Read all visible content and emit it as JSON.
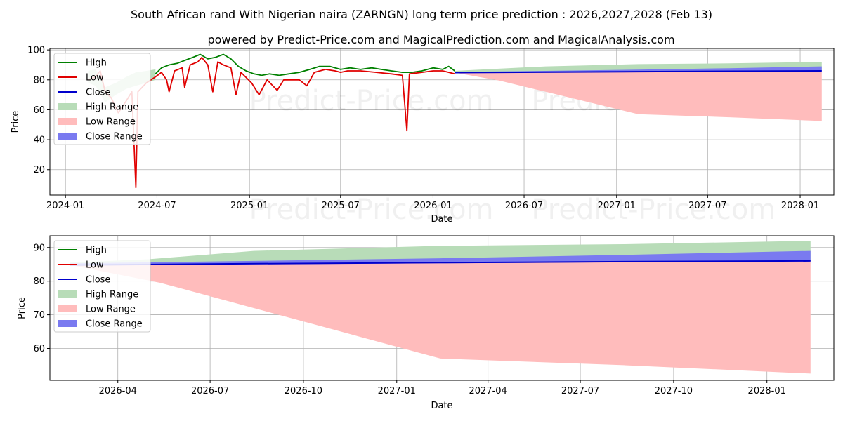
{
  "title": "South African rand With Nigerian naira (ZARNGN) long term price prediction : 2026,2027,2028 (Feb 13)",
  "subtitle": "powered by Predict-Price.com and MagicalPrediction.com and MagicalAnalysis.com",
  "watermark": "Predict-Price.com",
  "colors": {
    "high": "#008000",
    "low": "#e00000",
    "close": "#0000cc",
    "high_range": "#b8dcb8",
    "low_range": "#ffbcbc",
    "close_range": "#7a7af0"
  },
  "chart_data": [
    {
      "id": "overview",
      "type": "line",
      "xlabel": "Date",
      "ylabel": "Price",
      "xlim": [
        "2023-12-01",
        "2028-03-08"
      ],
      "ylim": [
        3,
        101
      ],
      "xticks": [
        {
          "date": "2024-01-01",
          "label": "2024-01"
        },
        {
          "date": "2024-07-01",
          "label": "2024-07"
        },
        {
          "date": "2025-01-01",
          "label": "2025-01"
        },
        {
          "date": "2025-07-01",
          "label": "2025-07"
        },
        {
          "date": "2026-01-01",
          "label": "2026-01"
        },
        {
          "date": "2026-07-01",
          "label": "2026-07"
        },
        {
          "date": "2027-01-01",
          "label": "2027-01"
        },
        {
          "date": "2027-07-01",
          "label": "2027-07"
        },
        {
          "date": "2028-01-01",
          "label": "2028-01"
        }
      ],
      "yticks": [
        20,
        40,
        60,
        80,
        100
      ],
      "grid": true,
      "legend_position": "top-left",
      "history_bands": {
        "high_range": [
          {
            "x": "2024-02-15",
            "lo": 78,
            "hi": 86
          },
          {
            "x": "2024-03-01",
            "lo": 76,
            "hi": 87
          },
          {
            "x": "2024-03-20",
            "lo": 65,
            "hi": 75
          },
          {
            "x": "2024-04-10",
            "lo": 70,
            "hi": 78
          },
          {
            "x": "2024-05-01",
            "lo": 74,
            "hi": 82
          },
          {
            "x": "2024-05-20",
            "lo": 76,
            "hi": 85
          },
          {
            "x": "2024-06-10",
            "lo": 78,
            "hi": 86
          },
          {
            "x": "2024-06-28",
            "lo": 80,
            "hi": 87
          }
        ]
      },
      "series": [
        {
          "name": "High",
          "points": [
            {
              "x": "2024-06-28",
              "y": 84
            },
            {
              "x": "2024-07-10",
              "y": 88
            },
            {
              "x": "2024-07-25",
              "y": 90
            },
            {
              "x": "2024-08-10",
              "y": 91
            },
            {
              "x": "2024-08-25",
              "y": 93
            },
            {
              "x": "2024-09-10",
              "y": 95
            },
            {
              "x": "2024-09-25",
              "y": 97
            },
            {
              "x": "2024-10-10",
              "y": 94
            },
            {
              "x": "2024-10-25",
              "y": 95
            },
            {
              "x": "2024-11-10",
              "y": 97
            },
            {
              "x": "2024-11-25",
              "y": 94
            },
            {
              "x": "2024-12-10",
              "y": 89
            },
            {
              "x": "2024-12-25",
              "y": 86
            },
            {
              "x": "2025-01-10",
              "y": 84
            },
            {
              "x": "2025-01-25",
              "y": 83
            },
            {
              "x": "2025-02-10",
              "y": 84
            },
            {
              "x": "2025-03-01",
              "y": 83
            },
            {
              "x": "2025-03-20",
              "y": 84
            },
            {
              "x": "2025-04-10",
              "y": 85
            },
            {
              "x": "2025-05-01",
              "y": 87
            },
            {
              "x": "2025-05-20",
              "y": 89
            },
            {
              "x": "2025-06-10",
              "y": 89
            },
            {
              "x": "2025-07-01",
              "y": 87
            },
            {
              "x": "2025-07-20",
              "y": 88
            },
            {
              "x": "2025-08-10",
              "y": 87
            },
            {
              "x": "2025-09-01",
              "y": 88
            },
            {
              "x": "2025-09-20",
              "y": 87
            },
            {
              "x": "2025-10-10",
              "y": 86
            },
            {
              "x": "2025-11-01",
              "y": 85
            },
            {
              "x": "2025-11-20",
              "y": 85
            },
            {
              "x": "2025-12-10",
              "y": 86
            },
            {
              "x": "2026-01-01",
              "y": 88
            },
            {
              "x": "2026-01-20",
              "y": 87
            },
            {
              "x": "2026-02-01",
              "y": 89
            },
            {
              "x": "2026-02-13",
              "y": 86
            }
          ]
        },
        {
          "name": "Low",
          "points": [
            {
              "x": "2024-02-15",
              "y": 80
            },
            {
              "x": "2024-03-01",
              "y": 82
            },
            {
              "x": "2024-03-10",
              "y": 86
            },
            {
              "x": "2024-03-20",
              "y": 72
            },
            {
              "x": "2024-04-01",
              "y": 68
            },
            {
              "x": "2024-04-15",
              "y": 58
            },
            {
              "x": "2024-05-01",
              "y": 66
            },
            {
              "x": "2024-05-12",
              "y": 72
            },
            {
              "x": "2024-05-20",
              "y": 8
            },
            {
              "x": "2024-05-24",
              "y": 72
            },
            {
              "x": "2024-06-10",
              "y": 78
            },
            {
              "x": "2024-06-28",
              "y": 82
            },
            {
              "x": "2024-07-10",
              "y": 85
            },
            {
              "x": "2024-07-20",
              "y": 80
            },
            {
              "x": "2024-07-25",
              "y": 72
            },
            {
              "x": "2024-08-05",
              "y": 86
            },
            {
              "x": "2024-08-20",
              "y": 88
            },
            {
              "x": "2024-08-25",
              "y": 75
            },
            {
              "x": "2024-09-05",
              "y": 90
            },
            {
              "x": "2024-09-20",
              "y": 92
            },
            {
              "x": "2024-09-28",
              "y": 95
            },
            {
              "x": "2024-10-10",
              "y": 90
            },
            {
              "x": "2024-10-20",
              "y": 72
            },
            {
              "x": "2024-10-30",
              "y": 92
            },
            {
              "x": "2024-11-10",
              "y": 90
            },
            {
              "x": "2024-11-25",
              "y": 88
            },
            {
              "x": "2024-12-05",
              "y": 70
            },
            {
              "x": "2024-12-15",
              "y": 85
            },
            {
              "x": "2025-01-05",
              "y": 78
            },
            {
              "x": "2025-01-20",
              "y": 70
            },
            {
              "x": "2025-02-05",
              "y": 80
            },
            {
              "x": "2025-02-25",
              "y": 73
            },
            {
              "x": "2025-03-10",
              "y": 80
            },
            {
              "x": "2025-04-10",
              "y": 80
            },
            {
              "x": "2025-04-25",
              "y": 76
            },
            {
              "x": "2025-05-10",
              "y": 85
            },
            {
              "x": "2025-06-01",
              "y": 87
            },
            {
              "x": "2025-06-20",
              "y": 86
            },
            {
              "x": "2025-07-01",
              "y": 85
            },
            {
              "x": "2025-07-15",
              "y": 86
            },
            {
              "x": "2025-08-10",
              "y": 86
            },
            {
              "x": "2025-09-10",
              "y": 85
            },
            {
              "x": "2025-10-10",
              "y": 84
            },
            {
              "x": "2025-11-01",
              "y": 83
            },
            {
              "x": "2025-11-10",
              "y": 46
            },
            {
              "x": "2025-11-15",
              "y": 84
            },
            {
              "x": "2025-12-10",
              "y": 85
            },
            {
              "x": "2026-01-01",
              "y": 86
            },
            {
              "x": "2026-01-20",
              "y": 86
            },
            {
              "x": "2026-02-13",
              "y": 84
            }
          ]
        },
        {
          "name": "Close",
          "points": [
            {
              "x": "2026-02-13",
              "y": 84.8
            },
            {
              "x": "2027-02-13",
              "y": 85.5
            },
            {
              "x": "2028-02-13",
              "y": 86
            }
          ]
        }
      ],
      "forecast_bands": {
        "high_range": [
          {
            "x": "2026-02-13",
            "lo": 85,
            "hi": 86
          },
          {
            "x": "2026-08-13",
            "lo": 85.2,
            "hi": 89
          },
          {
            "x": "2027-02-13",
            "lo": 85.5,
            "hi": 90.5
          },
          {
            "x": "2027-08-13",
            "lo": 85.7,
            "hi": 91
          },
          {
            "x": "2028-02-13",
            "lo": 86,
            "hi": 92
          }
        ],
        "low_range": [
          {
            "x": "2026-02-13",
            "lo": 84.8,
            "hi": 85
          },
          {
            "x": "2026-05-13",
            "lo": 79.5,
            "hi": 85.1
          },
          {
            "x": "2026-08-13",
            "lo": 72,
            "hi": 85.2
          },
          {
            "x": "2026-11-13",
            "lo": 64.5,
            "hi": 85.4
          },
          {
            "x": "2027-02-13",
            "lo": 57,
            "hi": 85.5
          },
          {
            "x": "2027-08-13",
            "lo": 55,
            "hi": 85.7
          },
          {
            "x": "2028-02-13",
            "lo": 52.5,
            "hi": 86
          }
        ],
        "close_range": [
          {
            "x": "2026-02-13",
            "lo": 84.6,
            "hi": 85.3
          },
          {
            "x": "2026-08-13",
            "lo": 85,
            "hi": 86
          },
          {
            "x": "2027-02-13",
            "lo": 85.3,
            "hi": 86.8
          },
          {
            "x": "2027-08-13",
            "lo": 85.6,
            "hi": 87.8
          },
          {
            "x": "2028-02-13",
            "lo": 86,
            "hi": 89
          }
        ]
      },
      "legend": [
        "High",
        "Low",
        "Close",
        "High Range",
        "Low Range",
        "Close Range"
      ]
    },
    {
      "id": "forecast",
      "type": "line",
      "xlabel": "Date",
      "ylabel": "Price",
      "xlim": [
        "2026-01-24",
        "2028-03-07"
      ],
      "ylim": [
        50.5,
        93.5
      ],
      "xticks": [
        {
          "date": "2026-04-01",
          "label": "2026-04"
        },
        {
          "date": "2026-07-01",
          "label": "2026-07"
        },
        {
          "date": "2026-10-01",
          "label": "2026-10"
        },
        {
          "date": "2027-01-01",
          "label": "2027-01"
        },
        {
          "date": "2027-04-01",
          "label": "2027-04"
        },
        {
          "date": "2027-07-01",
          "label": "2027-07"
        },
        {
          "date": "2027-10-01",
          "label": "2027-10"
        },
        {
          "date": "2028-01-01",
          "label": "2028-01"
        }
      ],
      "yticks": [
        60,
        70,
        80,
        90
      ],
      "grid": true,
      "legend_position": "top-left",
      "series": [
        {
          "name": "Close",
          "points": [
            {
              "x": "2026-02-13",
              "y": 84.8
            },
            {
              "x": "2026-08-13",
              "y": 85.2
            },
            {
              "x": "2027-02-13",
              "y": 85.5
            },
            {
              "x": "2027-08-13",
              "y": 85.8
            },
            {
              "x": "2028-02-13",
              "y": 86
            }
          ]
        }
      ],
      "forecast_bands": {
        "high_range": [
          {
            "x": "2026-02-13",
            "lo": 85,
            "hi": 85.5
          },
          {
            "x": "2026-05-01",
            "lo": 85.1,
            "hi": 86.5
          },
          {
            "x": "2026-08-13",
            "lo": 85.2,
            "hi": 89
          },
          {
            "x": "2027-02-13",
            "lo": 85.5,
            "hi": 90.5
          },
          {
            "x": "2027-08-13",
            "lo": 85.8,
            "hi": 91
          },
          {
            "x": "2028-02-13",
            "lo": 86,
            "hi": 92
          }
        ],
        "low_range": [
          {
            "x": "2026-02-13",
            "lo": 84.8,
            "hi": 85
          },
          {
            "x": "2026-05-13",
            "lo": 79.5,
            "hi": 85.1
          },
          {
            "x": "2026-08-13",
            "lo": 72,
            "hi": 85.2
          },
          {
            "x": "2026-11-13",
            "lo": 64.5,
            "hi": 85.4
          },
          {
            "x": "2027-02-13",
            "lo": 57,
            "hi": 85.5
          },
          {
            "x": "2027-08-13",
            "lo": 55,
            "hi": 85.8
          },
          {
            "x": "2028-02-13",
            "lo": 52.5,
            "hi": 86
          }
        ],
        "close_range": [
          {
            "x": "2026-02-13",
            "lo": 84.6,
            "hi": 85.3
          },
          {
            "x": "2026-08-13",
            "lo": 85,
            "hi": 86
          },
          {
            "x": "2027-02-13",
            "lo": 85.3,
            "hi": 86.8
          },
          {
            "x": "2027-08-13",
            "lo": 85.6,
            "hi": 87.8
          },
          {
            "x": "2028-02-13",
            "lo": 86,
            "hi": 89
          }
        ]
      },
      "legend": [
        "High",
        "Low",
        "Close",
        "High Range",
        "Low Range",
        "Close Range"
      ]
    }
  ]
}
